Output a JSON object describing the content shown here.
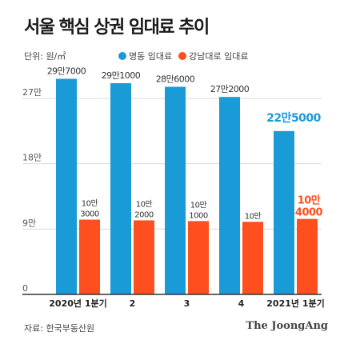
{
  "header": {
    "title": "서울 핵심 상권 임대료 추이",
    "unit": "단위: 원/㎡"
  },
  "legend": [
    {
      "label": "명동 임대료",
      "color": "#1a9bd7"
    },
    {
      "label": "강남대로 임대료",
      "color": "#ff4f1f"
    }
  ],
  "footer": {
    "source": "자료: 한국부동산원",
    "brand": "The JoongAng"
  },
  "chart_data": {
    "type": "bar",
    "categories": [
      "2020년 1분기",
      "2",
      "3",
      "4",
      "2021년 1분기"
    ],
    "series": [
      {
        "name": "명동 임대료",
        "color": "#1a9bd7",
        "values": [
          297000,
          291000,
          286000,
          272000,
          225000
        ],
        "labels": [
          [
            "29만7000"
          ],
          [
            "29만1000"
          ],
          [
            "28만6000"
          ],
          [
            "27만2000"
          ],
          [
            "22만5000"
          ]
        ]
      },
      {
        "name": "강남대로 임대료",
        "color": "#ff4f1f",
        "values": [
          103000,
          102000,
          101000,
          100000,
          104000
        ],
        "labels": [
          [
            "10만",
            "3000"
          ],
          [
            "10만",
            "2000"
          ],
          [
            "10만",
            "1000"
          ],
          [
            "10만"
          ],
          [
            "10만",
            "4000"
          ]
        ]
      }
    ],
    "yticks": [
      0,
      90000,
      180000,
      270000
    ],
    "yticklabels": [
      "0",
      "9만",
      "18만",
      "27만"
    ],
    "ylim": [
      0,
      300000
    ],
    "grid": true,
    "legend_position": "top"
  }
}
